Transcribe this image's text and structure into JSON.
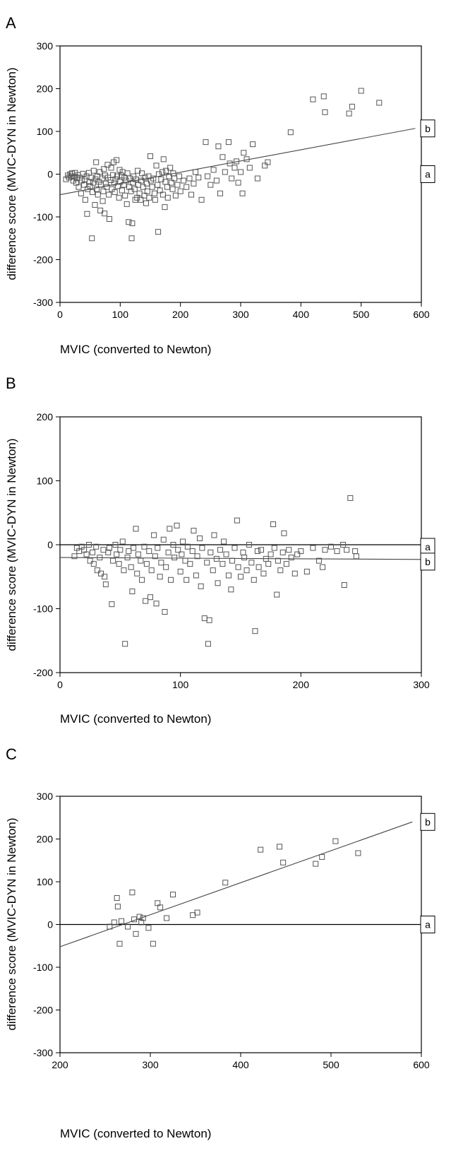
{
  "colors": {
    "axis": "#000000",
    "marker": "#555555",
    "line": "#444444",
    "background": "#ffffff"
  },
  "chart_data": [
    {
      "panel_label": "A",
      "type": "scatter",
      "xlabel": "MVIC (converted to Newton)",
      "ylabel": "difference score (MVIC-DYN in Newton)",
      "xlim": [
        0,
        600
      ],
      "ylim": [
        -300,
        300
      ],
      "xticks": [
        "0",
        "100",
        "200",
        "300",
        "400",
        "500",
        "600"
      ],
      "yticks": [
        "300",
        "200",
        "100",
        "0",
        "-100",
        "-200",
        "-300"
      ],
      "grid": false,
      "lines": [
        {
          "name": "a",
          "x": [
            0,
            600
          ],
          "y": [
            0,
            0
          ],
          "visible": false
        },
        {
          "name": "b",
          "x": [
            0,
            590
          ],
          "y": [
            -48,
            107
          ],
          "visible": true
        }
      ],
      "points": [
        [
          10,
          -12
        ],
        [
          13,
          -3
        ],
        [
          15,
          -8
        ],
        [
          17,
          0
        ],
        [
          19,
          -5
        ],
        [
          20,
          2
        ],
        [
          22,
          -15
        ],
        [
          24,
          -6
        ],
        [
          25,
          3
        ],
        [
          27,
          -20
        ],
        [
          28,
          -10
        ],
        [
          30,
          -2
        ],
        [
          31,
          -30
        ],
        [
          33,
          -8
        ],
        [
          35,
          -45
        ],
        [
          36,
          -15
        ],
        [
          38,
          1
        ],
        [
          40,
          -25
        ],
        [
          41,
          -12
        ],
        [
          42,
          -60
        ],
        [
          44,
          -5
        ],
        [
          45,
          -93
        ],
        [
          46,
          -35
        ],
        [
          48,
          3
        ],
        [
          49,
          -18
        ],
        [
          50,
          -28
        ],
        [
          52,
          -8
        ],
        [
          53,
          -150
        ],
        [
          54,
          -42
        ],
        [
          55,
          -20
        ],
        [
          56,
          8
        ],
        [
          58,
          -72
        ],
        [
          59,
          -12
        ],
        [
          60,
          28
        ],
        [
          61,
          -35
        ],
        [
          62,
          -5
        ],
        [
          63,
          -48
        ],
        [
          65,
          -18
        ],
        [
          66,
          5
        ],
        [
          67,
          -85
        ],
        [
          68,
          -25
        ],
        [
          70,
          -10
        ],
        [
          71,
          -63
        ],
        [
          72,
          -40
        ],
        [
          73,
          12
        ],
        [
          74,
          -92
        ],
        [
          75,
          -3
        ],
        [
          76,
          -22
        ],
        [
          78,
          -30
        ],
        [
          79,
          22
        ],
        [
          80,
          -8
        ],
        [
          81,
          -48
        ],
        [
          82,
          -105
        ],
        [
          84,
          -14
        ],
        [
          85,
          15
        ],
        [
          86,
          -35
        ],
        [
          88,
          -2
        ],
        [
          89,
          28
        ],
        [
          90,
          -20
        ],
        [
          91,
          -42
        ],
        [
          92,
          -12
        ],
        [
          94,
          33
        ],
        [
          95,
          -5
        ],
        [
          96,
          -28
        ],
        [
          98,
          -55
        ],
        [
          99,
          10
        ],
        [
          100,
          -18
        ],
        [
          102,
          -3
        ],
        [
          103,
          -38
        ],
        [
          104,
          5
        ],
        [
          106,
          -25
        ],
        [
          107,
          -8
        ],
        [
          108,
          -50
        ],
        [
          110,
          -15
        ],
        [
          111,
          -70
        ],
        [
          112,
          2
        ],
        [
          114,
          -112
        ],
        [
          115,
          -30
        ],
        [
          116,
          -10
        ],
        [
          118,
          -40
        ],
        [
          119,
          -150
        ],
        [
          120,
          -115
        ],
        [
          121,
          -20
        ],
        [
          122,
          -5
        ],
        [
          124,
          -35
        ],
        [
          125,
          -60
        ],
        [
          126,
          -12
        ],
        [
          128,
          -55
        ],
        [
          129,
          8
        ],
        [
          130,
          -25
        ],
        [
          132,
          -45
        ],
        [
          134,
          -60
        ],
        [
          135,
          -15
        ],
        [
          136,
          2
        ],
        [
          138,
          -30
        ],
        [
          140,
          -50
        ],
        [
          141,
          -8
        ],
        [
          143,
          -68
        ],
        [
          144,
          -22
        ],
        [
          145,
          -40
        ],
        [
          147,
          -5
        ],
        [
          148,
          -55
        ],
        [
          150,
          42
        ],
        [
          151,
          -15
        ],
        [
          153,
          -30
        ],
        [
          155,
          -10
        ],
        [
          157,
          -45
        ],
        [
          158,
          -60
        ],
        [
          160,
          20
        ],
        [
          162,
          -25
        ],
        [
          163,
          -135
        ],
        [
          164,
          0
        ],
        [
          166,
          -38
        ],
        [
          168,
          -12
        ],
        [
          170,
          5
        ],
        [
          171,
          -48
        ],
        [
          172,
          35
        ],
        [
          174,
          -77
        ],
        [
          175,
          -18
        ],
        [
          176,
          8
        ],
        [
          178,
          -30
        ],
        [
          179,
          -55
        ],
        [
          181,
          -5
        ],
        [
          183,
          15
        ],
        [
          185,
          -20
        ],
        [
          187,
          -35
        ],
        [
          188,
          2
        ],
        [
          190,
          -10
        ],
        [
          192,
          -50
        ],
        [
          195,
          -25
        ],
        [
          198,
          -5
        ],
        [
          200,
          -40
        ],
        [
          205,
          -15
        ],
        [
          210,
          -30
        ],
        [
          215,
          -10
        ],
        [
          218,
          -48
        ],
        [
          222,
          -22
        ],
        [
          225,
          5
        ],
        [
          230,
          -8
        ],
        [
          235,
          -60
        ],
        [
          242,
          75
        ],
        [
          245,
          -5
        ],
        [
          250,
          -25
        ],
        [
          255,
          10
        ],
        [
          260,
          -15
        ],
        [
          263,
          65
        ],
        [
          266,
          -45
        ],
        [
          270,
          40
        ],
        [
          274,
          5
        ],
        [
          280,
          75
        ],
        [
          282,
          25
        ],
        [
          285,
          -10
        ],
        [
          290,
          15
        ],
        [
          293,
          30
        ],
        [
          296,
          -20
        ],
        [
          300,
          5
        ],
        [
          303,
          -45
        ],
        [
          305,
          50
        ],
        [
          310,
          35
        ],
        [
          315,
          15
        ],
        [
          320,
          70
        ],
        [
          328,
          -10
        ],
        [
          340,
          20
        ],
        [
          345,
          28
        ],
        [
          383,
          98
        ],
        [
          420,
          175
        ],
        [
          438,
          182
        ],
        [
          440,
          145
        ],
        [
          480,
          142
        ],
        [
          485,
          158
        ],
        [
          500,
          195
        ],
        [
          530,
          167
        ]
      ]
    },
    {
      "panel_label": "B",
      "type": "scatter",
      "xlabel": "MVIC (converted to Newton)",
      "ylabel": "difference score (MVIC-DYN in Newton)",
      "xlim": [
        0,
        300
      ],
      "ylim": [
        -200,
        200
      ],
      "xticks": [
        "0",
        "100",
        "200",
        "300"
      ],
      "yticks": [
        "200",
        "100",
        "0",
        "-100",
        "-200"
      ],
      "grid": false,
      "lines": [
        {
          "name": "a",
          "x": [
            0,
            300
          ],
          "y": [
            0,
            0
          ],
          "visible": true
        },
        {
          "name": "b",
          "x": [
            0,
            300
          ],
          "y": [
            -20,
            -23
          ],
          "visible": true
        }
      ],
      "points": [
        [
          12,
          -18
        ],
        [
          14,
          -5
        ],
        [
          16,
          -10
        ],
        [
          18,
          -3
        ],
        [
          20,
          -8
        ],
        [
          22,
          -15
        ],
        [
          24,
          0
        ],
        [
          25,
          -25
        ],
        [
          27,
          -12
        ],
        [
          28,
          -30
        ],
        [
          30,
          -3
        ],
        [
          31,
          -40
        ],
        [
          33,
          -20
        ],
        [
          34,
          -45
        ],
        [
          36,
          -8
        ],
        [
          37,
          -50
        ],
        [
          38,
          -62
        ],
        [
          40,
          -12
        ],
        [
          41,
          -5
        ],
        [
          43,
          -93
        ],
        [
          44,
          -25
        ],
        [
          46,
          0
        ],
        [
          47,
          -15
        ],
        [
          49,
          -30
        ],
        [
          50,
          -8
        ],
        [
          52,
          5
        ],
        [
          53,
          -40
        ],
        [
          54,
          -155
        ],
        [
          56,
          -20
        ],
        [
          57,
          -10
        ],
        [
          59,
          -35
        ],
        [
          60,
          -73
        ],
        [
          61,
          -5
        ],
        [
          63,
          25
        ],
        [
          64,
          -45
        ],
        [
          65,
          -15
        ],
        [
          67,
          -25
        ],
        [
          68,
          -55
        ],
        [
          70,
          -3
        ],
        [
          71,
          -88
        ],
        [
          72,
          -30
        ],
        [
          74,
          -10
        ],
        [
          75,
          -82
        ],
        [
          76,
          -40
        ],
        [
          78,
          15
        ],
        [
          79,
          -18
        ],
        [
          80,
          -92
        ],
        [
          81,
          -5
        ],
        [
          83,
          -50
        ],
        [
          84,
          -28
        ],
        [
          86,
          8
        ],
        [
          87,
          -105
        ],
        [
          88,
          -35
        ],
        [
          90,
          -12
        ],
        [
          91,
          25
        ],
        [
          92,
          -55
        ],
        [
          94,
          0
        ],
        [
          95,
          -20
        ],
        [
          97,
          30
        ],
        [
          98,
          -8
        ],
        [
          100,
          -42
        ],
        [
          101,
          -15
        ],
        [
          102,
          5
        ],
        [
          104,
          -25
        ],
        [
          105,
          -55
        ],
        [
          106,
          -3
        ],
        [
          108,
          -30
        ],
        [
          110,
          -10
        ],
        [
          111,
          22
        ],
        [
          113,
          -48
        ],
        [
          114,
          -18
        ],
        [
          116,
          10
        ],
        [
          117,
          -65
        ],
        [
          118,
          -5
        ],
        [
          120,
          -115
        ],
        [
          122,
          -28
        ],
        [
          123,
          -155
        ],
        [
          124,
          -118
        ],
        [
          125,
          -12
        ],
        [
          127,
          -40
        ],
        [
          128,
          15
        ],
        [
          130,
          -22
        ],
        [
          131,
          -60
        ],
        [
          133,
          -8
        ],
        [
          135,
          -30
        ],
        [
          136,
          5
        ],
        [
          138,
          -15
        ],
        [
          140,
          -48
        ],
        [
          142,
          -70
        ],
        [
          143,
          -25
        ],
        [
          145,
          -5
        ],
        [
          147,
          38
        ],
        [
          148,
          -35
        ],
        [
          150,
          -50
        ],
        [
          152,
          -12
        ],
        [
          153,
          -20
        ],
        [
          155,
          -40
        ],
        [
          157,
          0
        ],
        [
          159,
          -28
        ],
        [
          161,
          -55
        ],
        [
          162,
          -135
        ],
        [
          164,
          -10
        ],
        [
          165,
          -35
        ],
        [
          167,
          -8
        ],
        [
          169,
          -45
        ],
        [
          171,
          -22
        ],
        [
          173,
          -30
        ],
        [
          175,
          -15
        ],
        [
          177,
          32
        ],
        [
          178,
          -5
        ],
        [
          180,
          -78
        ],
        [
          181,
          -25
        ],
        [
          183,
          -40
        ],
        [
          185,
          -12
        ],
        [
          186,
          18
        ],
        [
          188,
          -30
        ],
        [
          190,
          -8
        ],
        [
          192,
          -20
        ],
        [
          195,
          -45
        ],
        [
          197,
          -15
        ],
        [
          200,
          -10
        ],
        [
          205,
          -42
        ],
        [
          210,
          -5
        ],
        [
          215,
          -25
        ],
        [
          218,
          -35
        ],
        [
          220,
          -8
        ],
        [
          225,
          -3
        ],
        [
          230,
          -10
        ],
        [
          235,
          0
        ],
        [
          236,
          -63
        ],
        [
          238,
          -8
        ],
        [
          241,
          73
        ],
        [
          245,
          -10
        ],
        [
          246,
          -18
        ]
      ]
    },
    {
      "panel_label": "C",
      "type": "scatter",
      "xlabel": "MVIC (converted to Newton)",
      "ylabel": "difference score (MVIC-DYN in Newton)",
      "xlim": [
        200,
        600
      ],
      "ylim": [
        -300,
        300
      ],
      "xticks": [
        "200",
        "300",
        "400",
        "500",
        "600"
      ],
      "yticks": [
        "300",
        "200",
        "100",
        "0",
        "-100",
        "-200",
        "-300"
      ],
      "grid": false,
      "lines": [
        {
          "name": "a",
          "x": [
            200,
            600
          ],
          "y": [
            0,
            0
          ],
          "visible": true
        },
        {
          "name": "b",
          "x": [
            200,
            590
          ],
          "y": [
            -52,
            240
          ],
          "visible": true
        }
      ],
      "points": [
        [
          255,
          -5
        ],
        [
          260,
          5
        ],
        [
          263,
          62
        ],
        [
          264,
          42
        ],
        [
          266,
          -45
        ],
        [
          268,
          8
        ],
        [
          275,
          -5
        ],
        [
          280,
          75
        ],
        [
          282,
          12
        ],
        [
          284,
          -22
        ],
        [
          288,
          18
        ],
        [
          290,
          5
        ],
        [
          292,
          15
        ],
        [
          298,
          -8
        ],
        [
          303,
          -45
        ],
        [
          308,
          50
        ],
        [
          311,
          40
        ],
        [
          318,
          15
        ],
        [
          325,
          70
        ],
        [
          347,
          22
        ],
        [
          352,
          28
        ],
        [
          383,
          98
        ],
        [
          422,
          175
        ],
        [
          443,
          182
        ],
        [
          447,
          145
        ],
        [
          483,
          142
        ],
        [
          490,
          158
        ],
        [
          505,
          195
        ],
        [
          530,
          167
        ]
      ]
    }
  ]
}
